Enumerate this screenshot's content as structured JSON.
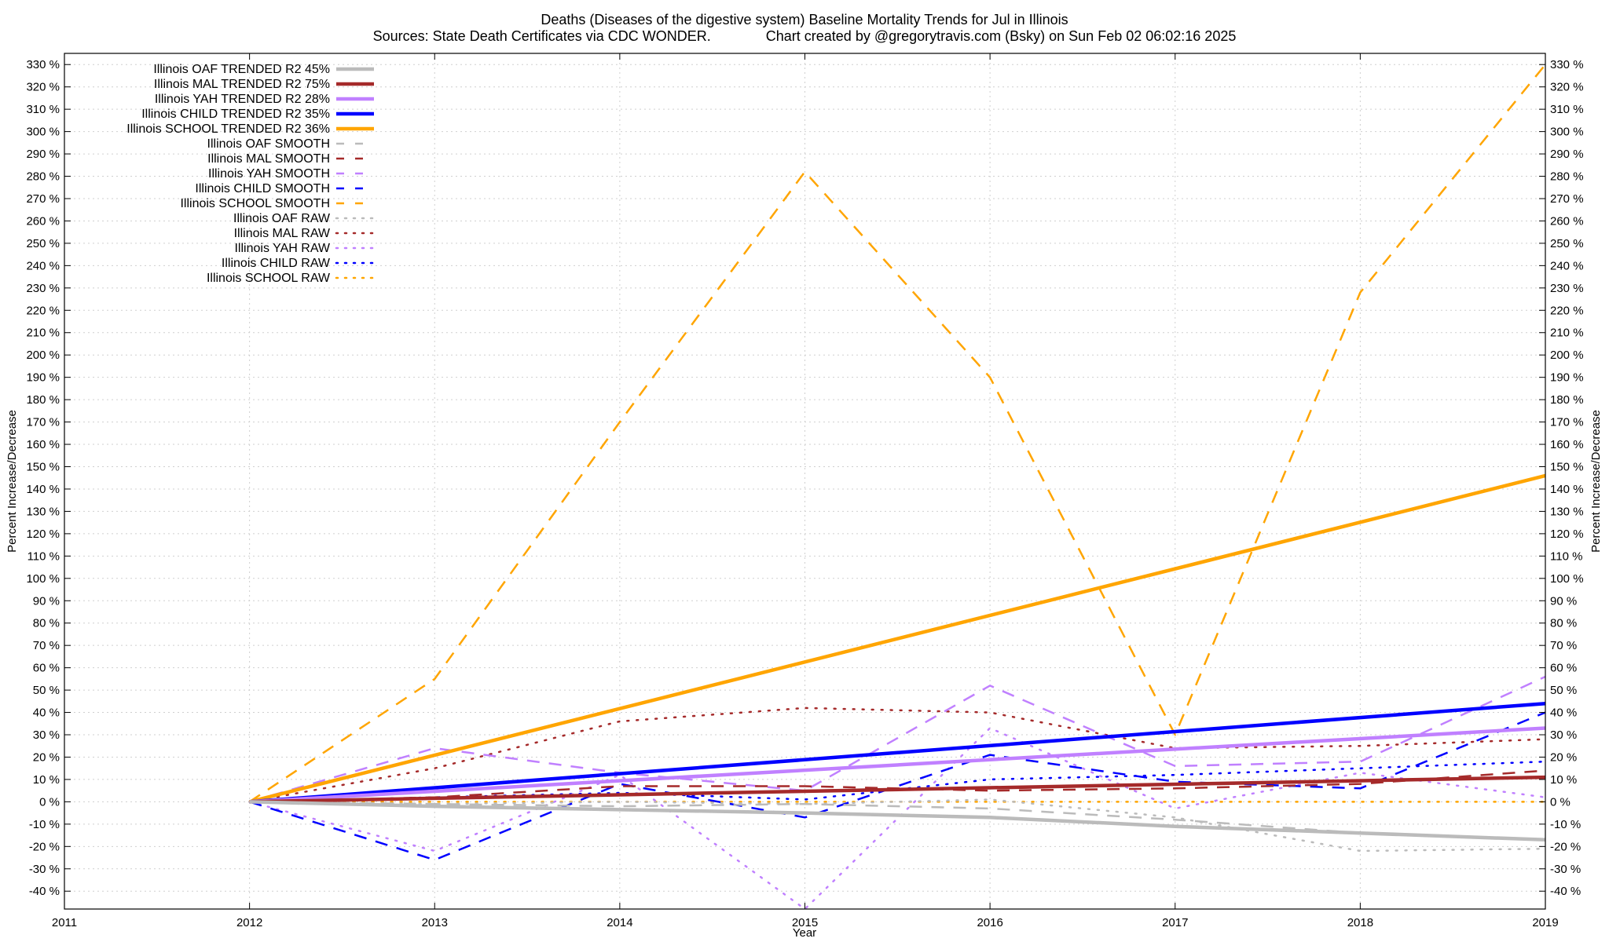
{
  "chart_data": {
    "type": "line",
    "title": "Deaths (Diseases of the digestive system)  Baseline Mortality Trends for Jul in Illinois",
    "subtitle": "Sources: State Death Certificates via CDC WONDER.              Chart created by @gregorytravis.com (Bsky) on Sun Feb 02 06:02:16 2025",
    "xlabel": "Year",
    "ylabel": "Percent Increase/Decrease",
    "y2label": "Percent Increase/Decrease",
    "xlim": [
      2011,
      2019
    ],
    "ylim": [
      -48,
      335
    ],
    "x_ticks": [
      2011,
      2012,
      2013,
      2014,
      2015,
      2016,
      2017,
      2018,
      2019
    ],
    "y_ticks": [
      -40,
      -30,
      -20,
      -10,
      0,
      10,
      20,
      30,
      40,
      50,
      60,
      70,
      80,
      90,
      100,
      110,
      120,
      130,
      140,
      150,
      160,
      170,
      180,
      190,
      200,
      210,
      220,
      230,
      240,
      250,
      260,
      270,
      280,
      290,
      300,
      310,
      320,
      330
    ],
    "y_tick_suffix": " %",
    "grid": true,
    "legend_position": "top-left",
    "series": [
      {
        "name": "Illinois OAF TRENDED R2  45%",
        "style": "solid",
        "color": "#bbbbbb",
        "x": [
          2012,
          2013,
          2014,
          2015,
          2016,
          2017,
          2018,
          2019
        ],
        "values": [
          0,
          -2,
          -3.5,
          -5,
          -7,
          -11,
          -14,
          -17
        ]
      },
      {
        "name": "Illinois MAL TRENDED R2  75%",
        "style": "solid",
        "color": "#a52a2a",
        "x": [
          2012,
          2019
        ],
        "values": [
          0,
          11
        ]
      },
      {
        "name": "Illinois YAH TRENDED R2  28%",
        "style": "solid",
        "color": "#c080ff",
        "x": [
          2012,
          2019
        ],
        "values": [
          0,
          33
        ]
      },
      {
        "name": "Illinois CHILD TRENDED R2  35%",
        "style": "solid",
        "color": "#0000ff",
        "x": [
          2012,
          2019
        ],
        "values": [
          0,
          44
        ]
      },
      {
        "name": "Illinois SCHOOL TRENDED R2  36%",
        "style": "solid",
        "color": "#ffa500",
        "x": [
          2012,
          2019
        ],
        "values": [
          0,
          146
        ]
      },
      {
        "name": "Illinois OAF SMOOTH",
        "style": "dashed",
        "color": "#bbbbbb",
        "x": [
          2012,
          2013,
          2014,
          2015,
          2016,
          2017,
          2018,
          2019
        ],
        "values": [
          0,
          -1,
          -2,
          -1,
          -3,
          -8,
          -14,
          -17
        ]
      },
      {
        "name": "Illinois MAL SMOOTH",
        "style": "dashed",
        "color": "#a52a2a",
        "x": [
          2012,
          2013,
          2014,
          2015,
          2016,
          2017,
          2018,
          2019
        ],
        "values": [
          0,
          2,
          7,
          7,
          5,
          6,
          8,
          14
        ]
      },
      {
        "name": "Illinois YAH SMOOTH",
        "style": "dashed",
        "color": "#c080ff",
        "x": [
          2012,
          2013,
          2014,
          2015,
          2016,
          2017,
          2018,
          2019
        ],
        "values": [
          0,
          24,
          13,
          5,
          52,
          16,
          18,
          56
        ]
      },
      {
        "name": "Illinois CHILD SMOOTH",
        "style": "dashed",
        "color": "#0000ff",
        "x": [
          2012,
          2013,
          2014,
          2015,
          2016,
          2017,
          2018,
          2019
        ],
        "values": [
          0,
          -26,
          8,
          -7,
          21,
          9,
          6,
          40
        ]
      },
      {
        "name": "Illinois SCHOOL SMOOTH",
        "style": "dashed",
        "color": "#ffa500",
        "x": [
          2012,
          2013,
          2014,
          2015,
          2016,
          2017,
          2018,
          2019
        ],
        "values": [
          0,
          55,
          170,
          282,
          190,
          30,
          228,
          330
        ]
      },
      {
        "name": "Illinois OAF RAW",
        "style": "dotted",
        "color": "#bbbbbb",
        "x": [
          2012,
          2013,
          2014,
          2015,
          2016,
          2017,
          2018,
          2019
        ],
        "values": [
          0,
          -1,
          0,
          -1,
          1,
          -7,
          -22,
          -21
        ]
      },
      {
        "name": "Illinois MAL RAW",
        "style": "dotted",
        "color": "#a52a2a",
        "x": [
          2012,
          2013,
          2014,
          2015,
          2016,
          2017,
          2018,
          2019
        ],
        "values": [
          0,
          15,
          36,
          42,
          40,
          24,
          25,
          28
        ]
      },
      {
        "name": "Illinois YAH RAW",
        "style": "dotted",
        "color": "#c080ff",
        "x": [
          2012,
          2013,
          2014,
          2015,
          2016,
          2017,
          2018,
          2019
        ],
        "values": [
          0,
          -22,
          12,
          -48,
          33,
          -3,
          13,
          2
        ]
      },
      {
        "name": "Illinois CHILD RAW",
        "style": "dotted",
        "color": "#0000ff",
        "x": [
          2012,
          2013,
          2014,
          2015,
          2016,
          2017,
          2018,
          2019
        ],
        "values": [
          0,
          2,
          4,
          1,
          10,
          12,
          15,
          18
        ]
      },
      {
        "name": "Illinois SCHOOL RAW",
        "style": "dotted",
        "color": "#ffa500",
        "x": [
          2012,
          2013,
          2014,
          2015,
          2016,
          2017,
          2018,
          2019
        ],
        "values": [
          0,
          0,
          0,
          0,
          0,
          0,
          0,
          0
        ]
      }
    ]
  }
}
